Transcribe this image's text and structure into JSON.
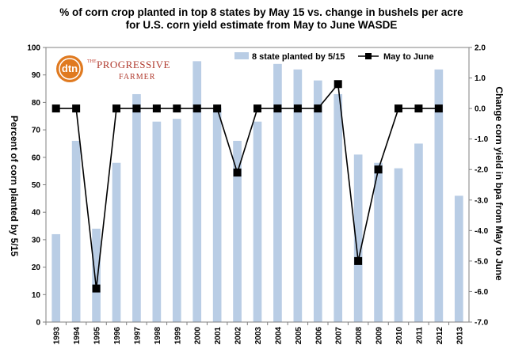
{
  "chart_data": {
    "type": "bar",
    "title_line1": "% of corn crop planted in top 8 states by May 15 vs. change in bushels per acre",
    "title_line2": "for U.S. corn yield estimate from May to June WASDE",
    "categories": [
      "1993",
      "1994",
      "1995",
      "1996",
      "1997",
      "1998",
      "1999",
      "2000",
      "2001",
      "2002",
      "2003",
      "2004",
      "2005",
      "2006",
      "2007",
      "2008",
      "2009",
      "2010",
      "2011",
      "2012",
      "2013"
    ],
    "series": [
      {
        "name": "8 state planted by 5/15",
        "type": "bar",
        "axis": "left",
        "color": "#b9cde5",
        "values": [
          32,
          66,
          34,
          58,
          83,
          73,
          74,
          95,
          78,
          66,
          73,
          94,
          92,
          88,
          83,
          61,
          58,
          56,
          65,
          92,
          46
        ]
      },
      {
        "name": "May to June",
        "type": "line",
        "axis": "right",
        "color": "#000000",
        "values": [
          0.0,
          0.0,
          -5.9,
          0.0,
          0.0,
          0.0,
          0.0,
          0.0,
          0.0,
          -2.1,
          0.0,
          0.0,
          0.0,
          0.0,
          0.8,
          -5.0,
          -2.0,
          0.0,
          0.0,
          0.0,
          null
        ]
      }
    ],
    "ylabel": "Percent of corn planted by 5/15",
    "y2label": "Change corn yield in bpa from May to June",
    "ylim": [
      0,
      100
    ],
    "y2lim": [
      -7,
      2
    ],
    "yticks": [
      "0",
      "10",
      "20",
      "30",
      "40",
      "50",
      "60",
      "70",
      "80",
      "90",
      "100"
    ],
    "y2ticks": [
      "2.0",
      "1.0",
      "0.0",
      "-1.0",
      "-2.0",
      "-3.0",
      "-4.0",
      "-5.0",
      "-6.0",
      "-7.0"
    ],
    "legend_position": "top-right",
    "grid": false
  },
  "logo": {
    "dtn": "dtn",
    "the": "THE",
    "main": "PROGRESSIVE",
    "sub": "FARMER"
  }
}
